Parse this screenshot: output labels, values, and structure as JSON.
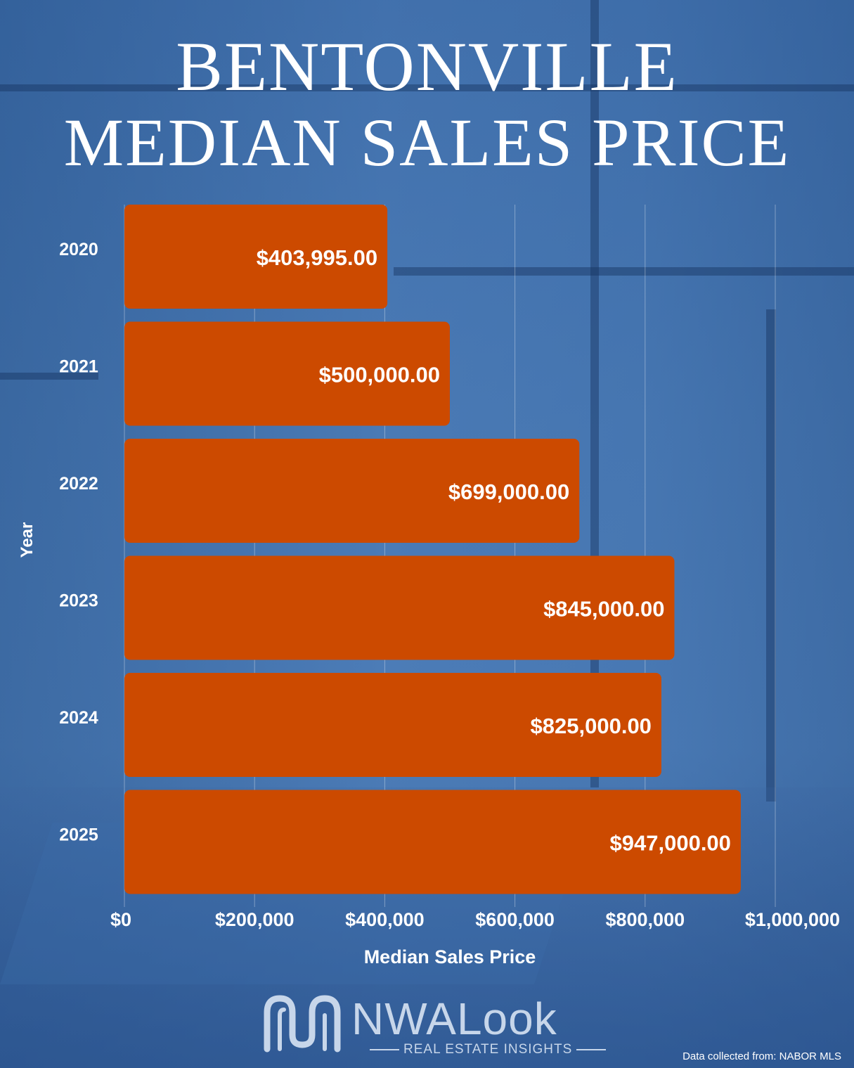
{
  "title": {
    "line1": "BENTONVILLE",
    "line2": "MEDIAN SALES PRICE"
  },
  "colors": {
    "bar": "#cc4a00",
    "text": "#ffffff",
    "background": "#3f6ea8"
  },
  "chart_data": {
    "type": "bar",
    "orientation": "horizontal",
    "categories": [
      "2020",
      "2021",
      "2022",
      "2023",
      "2024",
      "2025"
    ],
    "values": [
      403995,
      500000,
      699000,
      845000,
      825000,
      947000
    ],
    "data_labels": [
      "$403,995.00",
      "$500,000.00",
      "$699,000.00",
      "$845,000.00",
      "$825,000.00",
      "$947,000.00"
    ],
    "xlabel": "Median Sales Price",
    "ylabel": "Year",
    "xlim": [
      0,
      1000000
    ],
    "x_ticks": [
      0,
      200000,
      400000,
      600000,
      800000,
      1000000
    ],
    "x_tick_labels": [
      "$0",
      "$200,000",
      "$400,000",
      "$600,000",
      "$800,000",
      "$1,000,000"
    ],
    "grid": true
  },
  "logo": {
    "name": "NWALook",
    "tagline": "REAL ESTATE INSIGHTS"
  },
  "source": "Data collected from: NABOR MLS"
}
